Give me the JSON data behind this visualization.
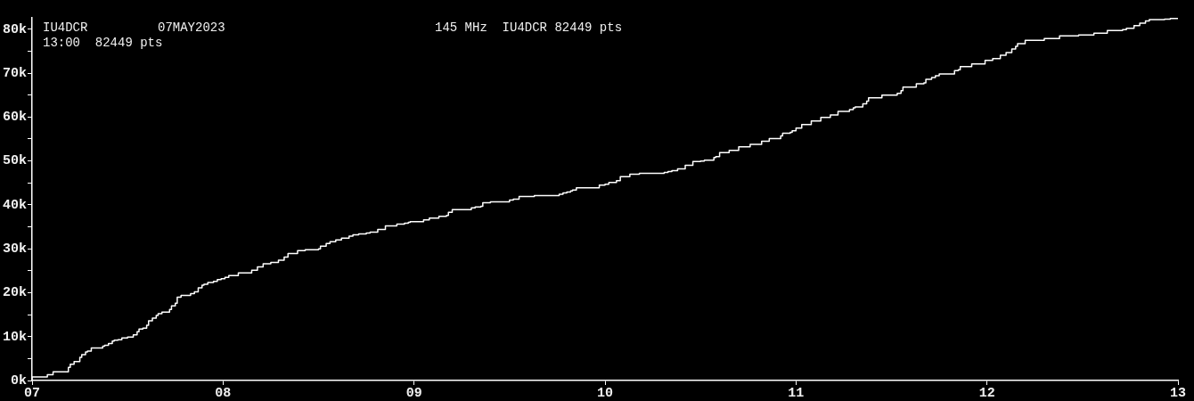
{
  "chart_data": {
    "type": "step",
    "color": "#ffffff",
    "annotations": [
      "IU4DCR",
      "07MAY2023",
      "145 MHz  IU4DCR 82449 pts",
      "13:00  82449 pts"
    ],
    "x": [
      7.0,
      7.08,
      7.11,
      7.19,
      7.2,
      7.22,
      7.25,
      7.26,
      7.28,
      7.29,
      7.31,
      7.37,
      7.38,
      7.4,
      7.42,
      7.43,
      7.45,
      7.47,
      7.5,
      7.53,
      7.55,
      7.56,
      7.58,
      7.6,
      7.61,
      7.63,
      7.65,
      7.66,
      7.68,
      7.72,
      7.73,
      7.75,
      7.76,
      7.78,
      7.83,
      7.85,
      7.87,
      7.89,
      7.9,
      7.92,
      7.95,
      7.97,
      7.99,
      8.01,
      8.03,
      8.08,
      8.15,
      8.18,
      8.21,
      8.25,
      8.29,
      8.32,
      8.34,
      8.39,
      8.43,
      8.5,
      8.51,
      8.54,
      8.56,
      8.59,
      8.62,
      8.66,
      8.68,
      8.71,
      8.75,
      8.77,
      8.81,
      8.85,
      8.91,
      8.95,
      8.97,
      8.98,
      9.05,
      9.08,
      9.13,
      9.17,
      9.18,
      9.2,
      9.3,
      9.32,
      9.35,
      9.36,
      9.4,
      9.5,
      9.52,
      9.55,
      9.63,
      9.76,
      9.78,
      9.8,
      9.82,
      9.83,
      9.85,
      9.97,
      10.0,
      10.02,
      10.06,
      10.08,
      10.13,
      10.18,
      10.31,
      10.33,
      10.35,
      10.38,
      10.42,
      10.46,
      10.5,
      10.52,
      10.57,
      10.58,
      10.6,
      10.65,
      10.7,
      10.76,
      10.82,
      10.86,
      10.92,
      10.93,
      10.97,
      10.98,
      11.0,
      11.03,
      11.08,
      11.13,
      11.18,
      11.22,
      11.28,
      11.3,
      11.31,
      11.35,
      11.37,
      11.38,
      11.45,
      11.53,
      11.55,
      11.56,
      11.63,
      11.67,
      11.68,
      11.71,
      11.73,
      11.75,
      11.83,
      11.85,
      11.86,
      11.92,
      11.99,
      12.03,
      12.07,
      12.1,
      12.13,
      12.15,
      12.16,
      12.2,
      12.3,
      12.38,
      12.48,
      12.56,
      12.63,
      12.71,
      12.73,
      12.77,
      12.8,
      12.83,
      12.85,
      12.93,
      12.96,
      12.98,
      13.0
    ],
    "values": [
      200,
      800,
      1300,
      2000,
      3000,
      3700,
      4300,
      5300,
      5900,
      6500,
      6700,
      7400,
      7800,
      8000,
      8400,
      9000,
      9200,
      9300,
      9700,
      9900,
      10400,
      11100,
      11700,
      11900,
      12600,
      13600,
      14200,
      14800,
      15200,
      15600,
      16200,
      17000,
      17600,
      19000,
      19400,
      19800,
      20200,
      21100,
      21700,
      21900,
      22300,
      22600,
      23000,
      23200,
      23500,
      23900,
      24500,
      25100,
      25900,
      26600,
      26900,
      27400,
      28100,
      28900,
      29600,
      29800,
      30000,
      30600,
      31200,
      31600,
      32000,
      32400,
      32900,
      33200,
      33400,
      33600,
      33800,
      34400,
      35200,
      35600,
      35800,
      36000,
      36200,
      36600,
      37000,
      37400,
      37600,
      38300,
      38900,
      39300,
      39500,
      39700,
      40500,
      40700,
      41100,
      41300,
      41900,
      42100,
      42400,
      42700,
      42900,
      43200,
      43400,
      43900,
      44500,
      44700,
      45100,
      45500,
      46400,
      47000,
      47200,
      47400,
      47600,
      47800,
      48200,
      49000,
      49900,
      50000,
      50200,
      50800,
      51000,
      51900,
      52400,
      53200,
      53800,
      54500,
      55100,
      55700,
      56300,
      56500,
      56900,
      57500,
      58300,
      59100,
      59900,
      60500,
      61300,
      61700,
      62100,
      62300,
      63000,
      63600,
      64400,
      65000,
      65400,
      66000,
      66800,
      67600,
      67800,
      68600,
      69000,
      69400,
      69800,
      70600,
      70800,
      71500,
      72100,
      72900,
      73300,
      74100,
      74700,
      75500,
      76100,
      76700,
      77500,
      77900,
      78500,
      78700,
      79100,
      79700,
      79900,
      80200,
      80800,
      81400,
      81900,
      82200,
      82300,
      82449,
      82449
    ],
    "xlim": [
      7,
      13
    ],
    "xticks": [
      {
        "value": 7,
        "label": "07"
      },
      {
        "value": 8,
        "label": "08"
      },
      {
        "value": 9,
        "label": "09"
      },
      {
        "value": 10,
        "label": "10"
      },
      {
        "value": 11,
        "label": "11"
      },
      {
        "value": 12,
        "label": "12"
      },
      {
        "value": 13,
        "label": "13"
      }
    ],
    "ylim": [
      0,
      82600
    ],
    "yticks": [
      {
        "value": 0,
        "label": "0k"
      },
      {
        "value": 5000,
        "label": null
      },
      {
        "value": 10000,
        "label": "10k"
      },
      {
        "value": 15000,
        "label": null
      },
      {
        "value": 20000,
        "label": "20k"
      },
      {
        "value": 25000,
        "label": null
      },
      {
        "value": 30000,
        "label": "30k"
      },
      {
        "value": 35000,
        "label": null
      },
      {
        "value": 40000,
        "label": "40k"
      },
      {
        "value": 45000,
        "label": null
      },
      {
        "value": 50000,
        "label": "50k"
      },
      {
        "value": 55000,
        "label": null
      },
      {
        "value": 60000,
        "label": "60k"
      },
      {
        "value": 65000,
        "label": null
      },
      {
        "value": 70000,
        "label": "70k"
      },
      {
        "value": 75000,
        "label": null
      },
      {
        "value": 80000,
        "label": "80k"
      }
    ]
  }
}
